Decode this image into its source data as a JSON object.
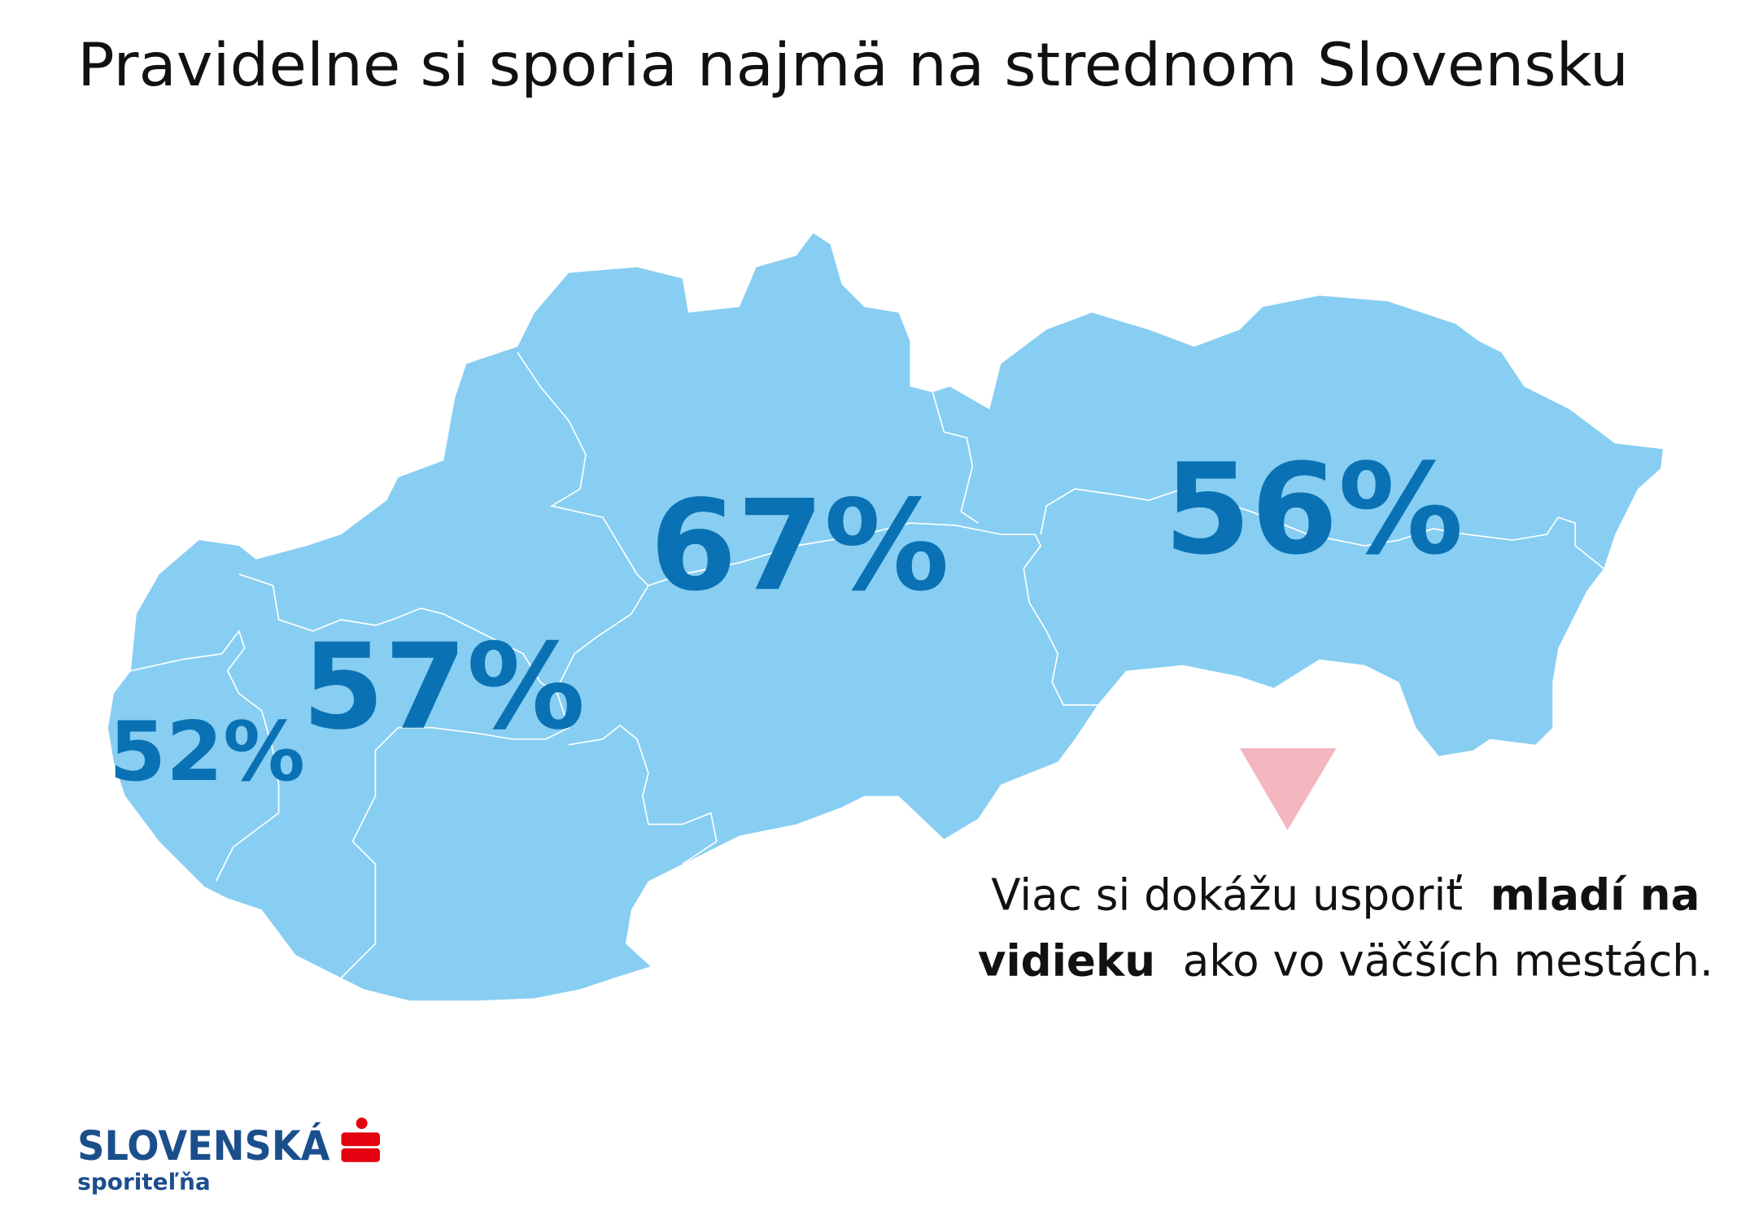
{
  "header": {
    "title": "Pravidelne si sporia najmä na strednom Slovensku"
  },
  "regions": [
    {
      "label": "52%"
    },
    {
      "label": "57%"
    },
    {
      "label": "67%"
    },
    {
      "label": "56%"
    }
  ],
  "note": {
    "parts": [
      "Viac si dokážu usporiť",
      "mladí na",
      "vidieku",
      "ako vo väčších mestách."
    ]
  },
  "logo": {
    "name": "SLOVENSKÁ",
    "subname": "sporiteľňa"
  }
}
